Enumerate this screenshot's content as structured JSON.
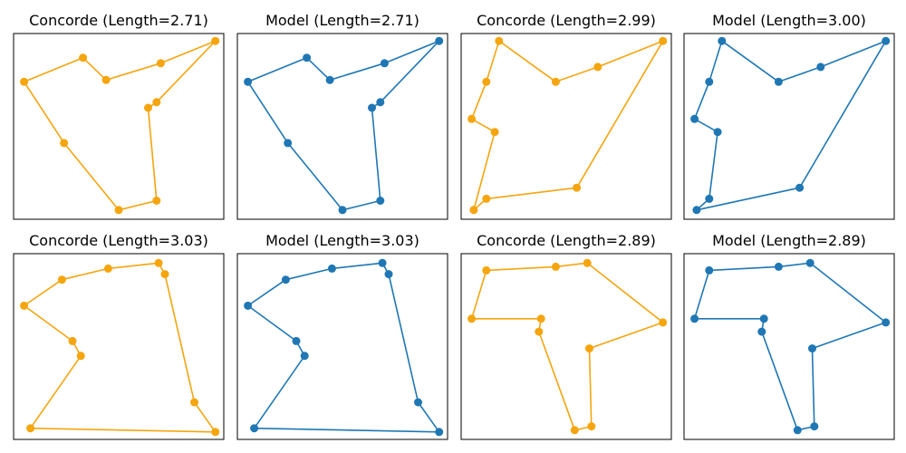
{
  "colors": {
    "concorde": "#f5a50e",
    "model": "#1f77b4"
  },
  "chart_data": [
    {
      "type": "line",
      "title": "Concorde (Length=2.71)",
      "color": "concorde",
      "xlim": [
        0,
        1
      ],
      "ylim": [
        0,
        1
      ],
      "grid": false,
      "tour": [
        [
          0.96,
          0.96
        ],
        [
          0.7,
          0.84
        ],
        [
          0.44,
          0.75
        ],
        [
          0.33,
          0.87
        ],
        [
          0.05,
          0.74
        ],
        [
          0.24,
          0.41
        ],
        [
          0.5,
          0.05
        ],
        [
          0.68,
          0.1
        ],
        [
          0.64,
          0.6
        ],
        [
          0.68,
          0.63
        ],
        [
          0.96,
          0.96
        ]
      ]
    },
    {
      "type": "line",
      "title": "Model (Length=2.71)",
      "color": "model",
      "xlim": [
        0,
        1
      ],
      "ylim": [
        0,
        1
      ],
      "grid": false,
      "tour": [
        [
          0.96,
          0.96
        ],
        [
          0.7,
          0.84
        ],
        [
          0.44,
          0.75
        ],
        [
          0.33,
          0.87
        ],
        [
          0.05,
          0.74
        ],
        [
          0.24,
          0.41
        ],
        [
          0.5,
          0.05
        ],
        [
          0.68,
          0.1
        ],
        [
          0.64,
          0.6
        ],
        [
          0.68,
          0.63
        ],
        [
          0.96,
          0.96
        ]
      ]
    },
    {
      "type": "line",
      "title": "Concorde (Length=2.99)",
      "color": "concorde",
      "xlim": [
        0,
        1
      ],
      "ylim": [
        0,
        1
      ],
      "grid": false,
      "tour": [
        [
          0.96,
          0.96
        ],
        [
          0.55,
          0.17
        ],
        [
          0.12,
          0.11
        ],
        [
          0.06,
          0.05
        ],
        [
          0.16,
          0.47
        ],
        [
          0.05,
          0.54
        ],
        [
          0.12,
          0.74
        ],
        [
          0.18,
          0.96
        ],
        [
          0.45,
          0.74
        ],
        [
          0.65,
          0.82
        ],
        [
          0.96,
          0.96
        ]
      ]
    },
    {
      "type": "line",
      "title": "Model (Length=3.00)",
      "color": "model",
      "xlim": [
        0,
        1
      ],
      "ylim": [
        0,
        1
      ],
      "grid": false,
      "tour": [
        [
          0.96,
          0.96
        ],
        [
          0.55,
          0.17
        ],
        [
          0.06,
          0.05
        ],
        [
          0.12,
          0.11
        ],
        [
          0.16,
          0.47
        ],
        [
          0.05,
          0.54
        ],
        [
          0.12,
          0.74
        ],
        [
          0.18,
          0.96
        ],
        [
          0.45,
          0.74
        ],
        [
          0.65,
          0.82
        ],
        [
          0.96,
          0.96
        ]
      ]
    },
    {
      "type": "line",
      "title": "Concorde (Length=3.03)",
      "color": "concorde",
      "xlim": [
        0,
        1
      ],
      "ylim": [
        0,
        1
      ],
      "grid": false,
      "tour": [
        [
          0.96,
          0.04
        ],
        [
          0.86,
          0.2
        ],
        [
          0.72,
          0.89
        ],
        [
          0.69,
          0.95
        ],
        [
          0.45,
          0.92
        ],
        [
          0.23,
          0.86
        ],
        [
          0.05,
          0.72
        ],
        [
          0.28,
          0.53
        ],
        [
          0.32,
          0.45
        ],
        [
          0.08,
          0.06
        ],
        [
          0.96,
          0.04
        ]
      ]
    },
    {
      "type": "line",
      "title": "Model (Length=3.03)",
      "color": "model",
      "xlim": [
        0,
        1
      ],
      "ylim": [
        0,
        1
      ],
      "grid": false,
      "tour": [
        [
          0.96,
          0.04
        ],
        [
          0.86,
          0.2
        ],
        [
          0.72,
          0.89
        ],
        [
          0.69,
          0.95
        ],
        [
          0.45,
          0.92
        ],
        [
          0.23,
          0.86
        ],
        [
          0.05,
          0.72
        ],
        [
          0.28,
          0.53
        ],
        [
          0.32,
          0.45
        ],
        [
          0.08,
          0.06
        ],
        [
          0.96,
          0.04
        ]
      ]
    },
    {
      "type": "line",
      "title": "Concorde (Length=2.89)",
      "color": "concorde",
      "xlim": [
        0,
        1
      ],
      "ylim": [
        0,
        1
      ],
      "grid": false,
      "tour": [
        [
          0.96,
          0.63
        ],
        [
          0.6,
          0.95
        ],
        [
          0.45,
          0.93
        ],
        [
          0.12,
          0.91
        ],
        [
          0.05,
          0.65
        ],
        [
          0.38,
          0.65
        ],
        [
          0.37,
          0.58
        ],
        [
          0.54,
          0.05
        ],
        [
          0.62,
          0.07
        ],
        [
          0.61,
          0.49
        ],
        [
          0.96,
          0.63
        ]
      ]
    },
    {
      "type": "line",
      "title": "Model (Length=2.89)",
      "color": "model",
      "xlim": [
        0,
        1
      ],
      "ylim": [
        0,
        1
      ],
      "grid": false,
      "tour": [
        [
          0.96,
          0.63
        ],
        [
          0.6,
          0.95
        ],
        [
          0.45,
          0.93
        ],
        [
          0.12,
          0.91
        ],
        [
          0.05,
          0.65
        ],
        [
          0.38,
          0.65
        ],
        [
          0.37,
          0.58
        ],
        [
          0.54,
          0.05
        ],
        [
          0.62,
          0.07
        ],
        [
          0.61,
          0.49
        ],
        [
          0.96,
          0.63
        ]
      ]
    }
  ]
}
